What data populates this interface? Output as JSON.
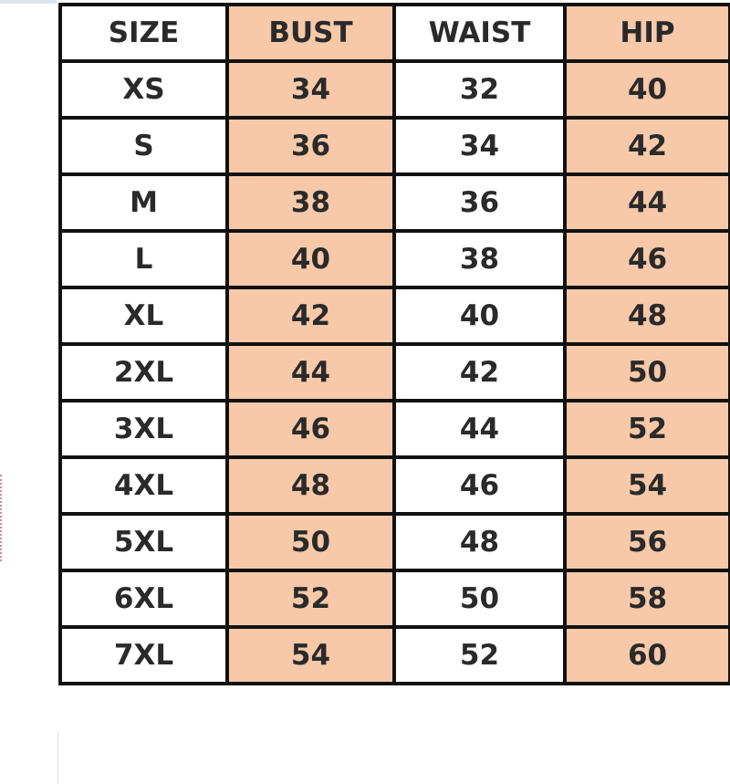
{
  "table": {
    "headers": [
      "SIZE",
      "BUST",
      "WAIST",
      "HIP"
    ],
    "rows": [
      [
        "XS",
        "34",
        "32",
        "40"
      ],
      [
        "S",
        "36",
        "34",
        "42"
      ],
      [
        "M",
        "38",
        "36",
        "44"
      ],
      [
        "L",
        "40",
        "38",
        "46"
      ],
      [
        "XL",
        "42",
        "40",
        "48"
      ],
      [
        "2XL",
        "44",
        "42",
        "50"
      ],
      [
        "3XL",
        "46",
        "44",
        "52"
      ],
      [
        "4XL",
        "48",
        "46",
        "54"
      ],
      [
        "5XL",
        "50",
        "48",
        "56"
      ],
      [
        "6XL",
        "52",
        "50",
        "58"
      ],
      [
        "7XL",
        "54",
        "52",
        "60"
      ]
    ]
  },
  "colors": {
    "highlight": "#f7c9a9",
    "border": "#111111"
  }
}
